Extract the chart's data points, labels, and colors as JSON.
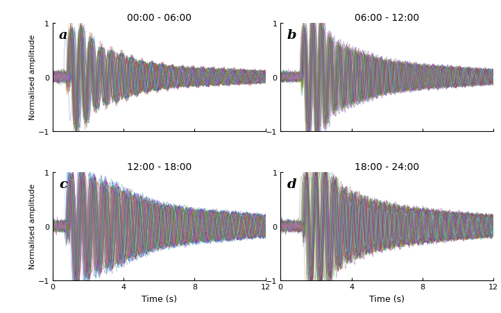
{
  "titles": [
    "00:00 - 06:00",
    "06:00 - 12:00",
    "12:00 - 18:00",
    "18:00 - 24:00"
  ],
  "labels": [
    "a",
    "b",
    "c",
    "d"
  ],
  "xlabel": "Time (s)",
  "ylabel": "Normalised amplitude",
  "xlim": [
    0,
    12
  ],
  "ylim": [
    -1,
    1
  ],
  "xticks": [
    0,
    4,
    8,
    12
  ],
  "yticks": [
    -1,
    0,
    1
  ],
  "n_traces": 80,
  "n_points": 1200,
  "background_color": "#ffffff",
  "linewidth": 0.35,
  "alpha": 0.55,
  "panel_configs": [
    {
      "label": "a",
      "seed": 42,
      "base_freq": 1.8,
      "decay": 0.38,
      "onset": 0.9,
      "onset_spread": 0.08,
      "amp_spread": 0.12,
      "freq_spread": 0.08,
      "noise_level": 0.012,
      "pre_noise": 0.04,
      "main_amp": 0.95,
      "envelope_shape": [
        {
          "t": 0.0,
          "a": 0.0
        },
        {
          "t": 0.9,
          "a": 0.85
        },
        {
          "t": 1.4,
          "a": 1.0
        },
        {
          "t": 2.5,
          "a": 0.55
        },
        {
          "t": 3.5,
          "a": 0.45
        },
        {
          "t": 5.0,
          "a": 0.28
        },
        {
          "t": 7.0,
          "a": 0.18
        },
        {
          "t": 12.0,
          "a": 0.1
        }
      ]
    },
    {
      "label": "b",
      "seed": 77,
      "base_freq": 2.0,
      "decay": 0.32,
      "onset": 1.2,
      "onset_spread": 0.06,
      "amp_spread": 0.1,
      "freq_spread": 0.07,
      "noise_level": 0.012,
      "pre_noise": 0.035,
      "main_amp": 1.0,
      "envelope_shape": [
        {
          "t": 0.0,
          "a": 0.0
        },
        {
          "t": 1.0,
          "a": 0.6
        },
        {
          "t": 1.5,
          "a": 1.0
        },
        {
          "t": 2.2,
          "a": 1.0
        },
        {
          "t": 3.0,
          "a": 0.6
        },
        {
          "t": 4.5,
          "a": 0.42
        },
        {
          "t": 6.0,
          "a": 0.28
        },
        {
          "t": 8.0,
          "a": 0.2
        },
        {
          "t": 12.0,
          "a": 0.12
        }
      ]
    },
    {
      "label": "c",
      "seed": 123,
      "base_freq": 1.6,
      "decay": 0.28,
      "onset": 0.85,
      "onset_spread": 0.07,
      "amp_spread": 0.1,
      "freq_spread": 0.07,
      "noise_level": 0.015,
      "pre_noise": 0.04,
      "main_amp": 1.0,
      "envelope_shape": [
        {
          "t": 0.0,
          "a": 0.0
        },
        {
          "t": 0.8,
          "a": 0.8
        },
        {
          "t": 1.3,
          "a": 1.0
        },
        {
          "t": 2.5,
          "a": 0.8
        },
        {
          "t": 3.5,
          "a": 0.7
        },
        {
          "t": 4.5,
          "a": 0.55
        },
        {
          "t": 6.0,
          "a": 0.38
        },
        {
          "t": 8.0,
          "a": 0.28
        },
        {
          "t": 12.0,
          "a": 0.18
        }
      ]
    },
    {
      "label": "d",
      "seed": 200,
      "base_freq": 1.9,
      "decay": 0.3,
      "onset": 1.3,
      "onset_spread": 0.08,
      "amp_spread": 0.11,
      "freq_spread": 0.08,
      "noise_level": 0.014,
      "pre_noise": 0.04,
      "main_amp": 0.98,
      "envelope_shape": [
        {
          "t": 0.0,
          "a": 0.0
        },
        {
          "t": 1.1,
          "a": 0.7
        },
        {
          "t": 1.6,
          "a": 1.0
        },
        {
          "t": 2.5,
          "a": 1.0
        },
        {
          "t": 3.5,
          "a": 0.65
        },
        {
          "t": 5.0,
          "a": 0.45
        },
        {
          "t": 7.0,
          "a": 0.32
        },
        {
          "t": 10.0,
          "a": 0.22
        },
        {
          "t": 12.0,
          "a": 0.18
        }
      ]
    }
  ]
}
